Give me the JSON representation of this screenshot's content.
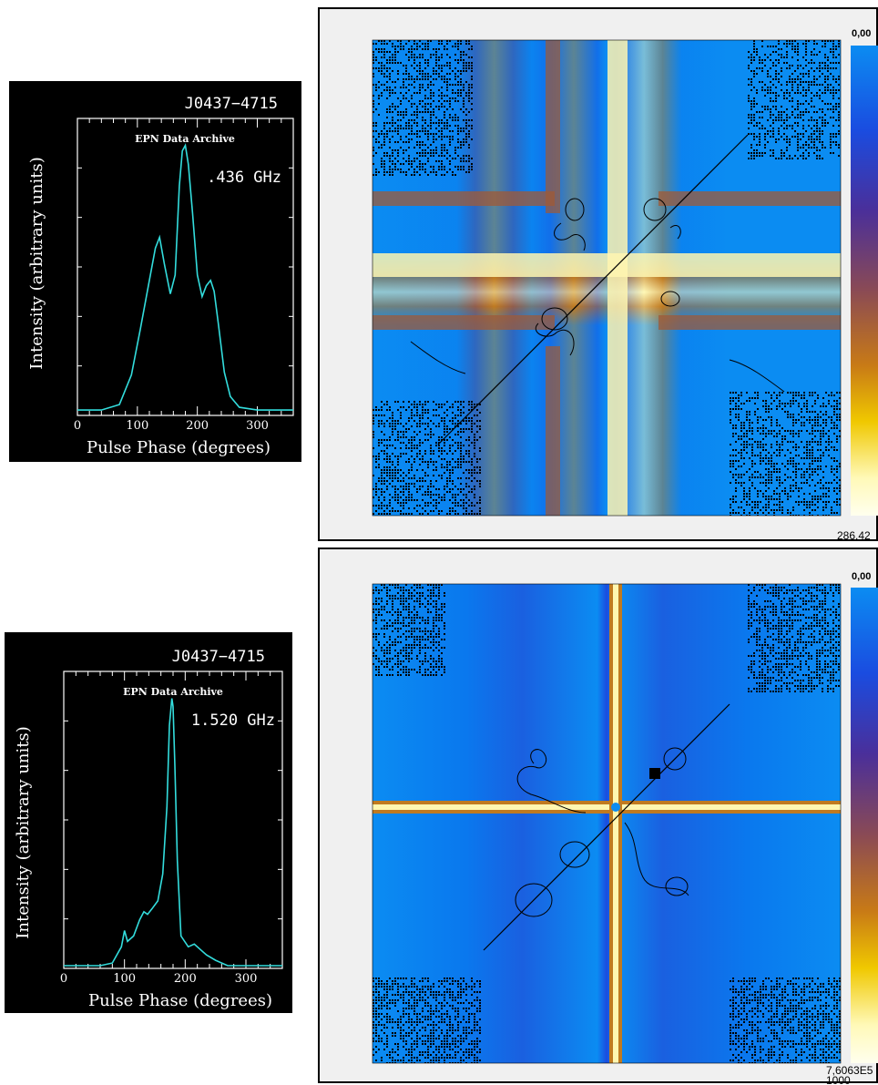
{
  "figure": {
    "colorbar_stops": [
      "#0b8cf2",
      "#1a4ce0",
      "#4a2f9a",
      "#8a4a55",
      "#c87a16",
      "#f0c800",
      "#fff9b8",
      "#ffffee"
    ]
  },
  "chart_data": [
    {
      "type": "line",
      "title": "J0437−4715",
      "subtitle": "EPN Data Archive",
      "annotation": ".436 GHz",
      "xlabel": "Pulse Phase (degrees)",
      "ylabel": "Intensity (arbitrary units)",
      "xlim": [
        0,
        360
      ],
      "ylim": [
        0,
        1.1
      ],
      "xticks": [
        "0",
        "100",
        "200",
        "300"
      ],
      "line_color": "#33dddd",
      "series": [
        {
          "x": [
            0,
            40,
            70,
            90,
            105,
            120,
            130,
            137,
            145,
            155,
            163,
            170,
            175,
            180,
            185,
            192,
            200,
            208,
            215,
            222,
            228,
            235,
            245,
            255,
            270,
            300,
            330,
            360
          ],
          "y": [
            0.02,
            0.02,
            0.04,
            0.15,
            0.32,
            0.5,
            0.62,
            0.66,
            0.56,
            0.45,
            0.52,
            0.85,
            0.98,
            1.0,
            0.93,
            0.75,
            0.52,
            0.44,
            0.48,
            0.5,
            0.46,
            0.34,
            0.16,
            0.07,
            0.03,
            0.02,
            0.02,
            0.02
          ]
        }
      ]
    },
    {
      "type": "line",
      "title": "J0437−4715",
      "subtitle": "EPN Data Archive",
      "annotation": "1.520 GHz",
      "xlabel": "Pulse Phase (degrees)",
      "ylabel": "Intensity (arbitrary units)",
      "xlim": [
        0,
        360
      ],
      "ylim": [
        0,
        1.1
      ],
      "xticks": [
        "0",
        "100",
        "200",
        "300"
      ],
      "line_color": "#33dddd",
      "series": [
        {
          "x": [
            0,
            60,
            80,
            95,
            100,
            105,
            115,
            125,
            132,
            138,
            145,
            155,
            163,
            170,
            174,
            178,
            180,
            183,
            187,
            193,
            205,
            215,
            225,
            235,
            250,
            270,
            300,
            360
          ],
          "y": [
            0.01,
            0.01,
            0.02,
            0.08,
            0.14,
            0.1,
            0.12,
            0.18,
            0.21,
            0.2,
            0.22,
            0.25,
            0.35,
            0.6,
            0.9,
            1.0,
            0.97,
            0.75,
            0.4,
            0.12,
            0.08,
            0.09,
            0.07,
            0.05,
            0.03,
            0.01,
            0.01,
            0.01
          ]
        }
      ]
    },
    {
      "type": "heatmap",
      "colorbar_top_label": "0,00",
      "colorbar_bottom_label": "286,42",
      "bottom_right_label": ""
    },
    {
      "type": "heatmap",
      "colorbar_top_label": "0,00",
      "colorbar_bottom_label": "7,6063E5",
      "bottom_right_label": "1000"
    }
  ]
}
